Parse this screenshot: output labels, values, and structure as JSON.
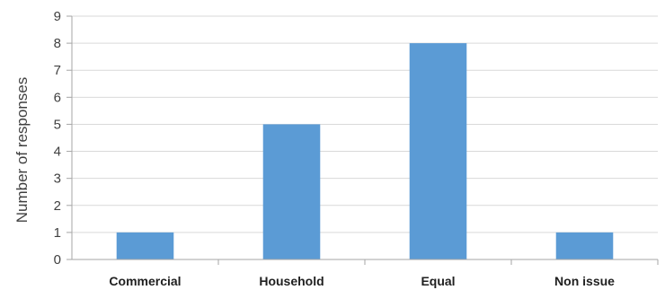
{
  "chart_data": {
    "type": "bar",
    "title": "",
    "xlabel": "",
    "ylabel": "Number of responses",
    "categories": [
      "Commercial",
      "Household",
      "Equal",
      "Non issue"
    ],
    "values": [
      1,
      5,
      8,
      1
    ],
    "ylim": [
      0,
      9
    ],
    "yticks": [
      0,
      1,
      2,
      3,
      4,
      5,
      6,
      7,
      8,
      9
    ],
    "grid": true,
    "legend": "none",
    "colors": {
      "bar": "#5B9BD5",
      "grid": "#d9d9d9",
      "axis": "#a6a6a6"
    }
  }
}
